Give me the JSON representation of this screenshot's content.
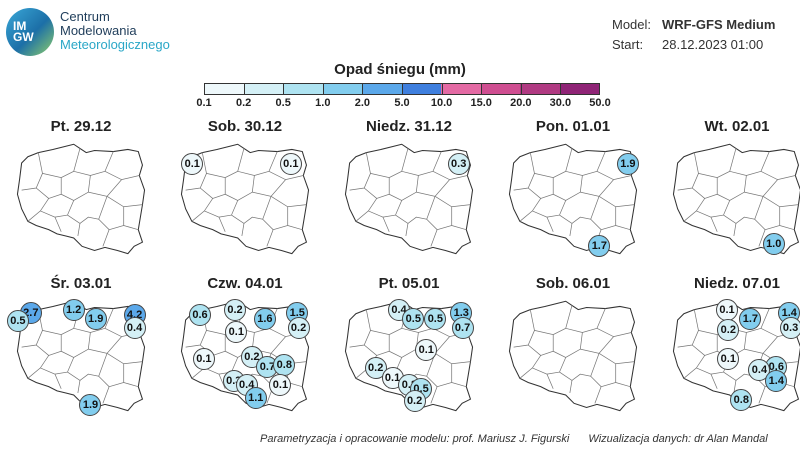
{
  "header": {
    "logo_text": [
      "IM",
      "GW"
    ],
    "org_name": [
      "Centrum",
      "Modelowania",
      "Meteorologicznego"
    ],
    "model_label": "Model:",
    "model_value": "WRF-GFS Medium",
    "start_label": "Start:",
    "start_value": "28.12.2023 01:00"
  },
  "legend": {
    "title": "Opad śniegu (mm)",
    "thresholds": [
      "0.1",
      "0.2",
      "0.5",
      "1.0",
      "2.0",
      "5.0",
      "10.0",
      "15.0",
      "20.0",
      "30.0",
      "50.0"
    ],
    "colors": [
      "#eef8fb",
      "#d4f0f6",
      "#aee3f1",
      "#82cdee",
      "#5ba8ea",
      "#3f7fde",
      "#e46aa4",
      "#cf4e91",
      "#b03a82",
      "#8f2476"
    ]
  },
  "panels": [
    {
      "title": "Pt. 29.12",
      "points": []
    },
    {
      "title": "Sob. 30.12",
      "points": [
        {
          "v": "0.1",
          "lon": 15.0,
          "lat": 53.9
        },
        {
          "v": "0.1",
          "lon": 22.6,
          "lat": 53.9
        }
      ]
    },
    {
      "title": "Niedz. 31.12",
      "points": [
        {
          "v": "0.3",
          "lon": 22.9,
          "lat": 53.9
        }
      ]
    },
    {
      "title": "Pon. 01.01",
      "points": [
        {
          "v": "1.9",
          "lon": 23.3,
          "lat": 53.9
        },
        {
          "v": "1.7",
          "lon": 21.1,
          "lat": 49.4
        }
      ]
    },
    {
      "title": "Wt. 02.01",
      "points": [
        {
          "v": "1.0",
          "lon": 21.9,
          "lat": 49.5
        }
      ]
    },
    {
      "title": "Śr. 03.01",
      "points": [
        {
          "v": "2.7",
          "lon": 15.2,
          "lat": 54.3
        },
        {
          "v": "1.2",
          "lon": 18.5,
          "lat": 54.5
        },
        {
          "v": "4.2",
          "lon": 23.2,
          "lat": 54.2
        },
        {
          "v": "0.5",
          "lon": 14.2,
          "lat": 53.9
        },
        {
          "v": "1.9",
          "lon": 20.2,
          "lat": 54.0
        },
        {
          "v": "0.4",
          "lon": 23.2,
          "lat": 53.5
        },
        {
          "v": "1.9",
          "lon": 19.8,
          "lat": 49.3
        }
      ]
    },
    {
      "title": "Czw. 04.01",
      "points": [
        {
          "v": "0.2",
          "lon": 18.3,
          "lat": 54.5
        },
        {
          "v": "1.5",
          "lon": 23.1,
          "lat": 54.3
        },
        {
          "v": "0.6",
          "lon": 15.6,
          "lat": 54.2
        },
        {
          "v": "1.6",
          "lon": 20.6,
          "lat": 54.0
        },
        {
          "v": "0.2",
          "lon": 23.2,
          "lat": 53.5
        },
        {
          "v": "0.1",
          "lon": 18.4,
          "lat": 53.3
        },
        {
          "v": "0.2",
          "lon": 19.6,
          "lat": 51.9
        },
        {
          "v": "0.1",
          "lon": 15.9,
          "lat": 51.8
        },
        {
          "v": "0.7",
          "lon": 20.8,
          "lat": 51.4
        },
        {
          "v": "0.8",
          "lon": 22.1,
          "lat": 51.5
        },
        {
          "v": "0.3",
          "lon": 18.2,
          "lat": 50.6
        },
        {
          "v": "0.4",
          "lon": 19.2,
          "lat": 50.4
        },
        {
          "v": "0.1",
          "lon": 21.8,
          "lat": 50.4
        },
        {
          "v": "1.1",
          "lon": 19.9,
          "lat": 49.7
        }
      ]
    },
    {
      "title": "Pt. 05.01",
      "points": [
        {
          "v": "0.4",
          "lon": 18.3,
          "lat": 54.5
        },
        {
          "v": "1.3",
          "lon": 23.1,
          "lat": 54.3
        },
        {
          "v": "0.5",
          "lon": 19.4,
          "lat": 54.0
        },
        {
          "v": "0.5",
          "lon": 21.1,
          "lat": 54.0
        },
        {
          "v": "0.7",
          "lon": 23.2,
          "lat": 53.5
        },
        {
          "v": "0.1",
          "lon": 20.4,
          "lat": 52.3
        },
        {
          "v": "0.2",
          "lon": 16.5,
          "lat": 51.3
        },
        {
          "v": "0.1",
          "lon": 17.8,
          "lat": 50.8
        },
        {
          "v": "0.2",
          "lon": 19.1,
          "lat": 50.4
        },
        {
          "v": "0.5",
          "lon": 20.0,
          "lat": 50.2
        },
        {
          "v": "0.2",
          "lon": 19.5,
          "lat": 49.5
        }
      ]
    },
    {
      "title": "Sob. 06.01",
      "points": []
    },
    {
      "title": "Niedz. 07.01",
      "points": [
        {
          "v": "0.1",
          "lon": 18.3,
          "lat": 54.5
        },
        {
          "v": "1.4",
          "lon": 23.1,
          "lat": 54.3
        },
        {
          "v": "1.7",
          "lon": 20.1,
          "lat": 54.0
        },
        {
          "v": "0.3",
          "lon": 23.2,
          "lat": 53.5
        },
        {
          "v": "0.2",
          "lon": 18.4,
          "lat": 53.4
        },
        {
          "v": "0.1",
          "lon": 18.4,
          "lat": 51.8
        },
        {
          "v": "0.6",
          "lon": 22.1,
          "lat": 51.4
        },
        {
          "v": "0.4",
          "lon": 20.8,
          "lat": 51.2
        },
        {
          "v": "1.4",
          "lon": 22.1,
          "lat": 50.6
        },
        {
          "v": "0.8",
          "lon": 19.4,
          "lat": 49.6
        }
      ]
    }
  ],
  "credits": {
    "model": "Parametryzacja i opracowanie modelu: prof. Mariusz J. Figurski",
    "viz": "Wizualizacja danych: dr Alan Mandal"
  }
}
